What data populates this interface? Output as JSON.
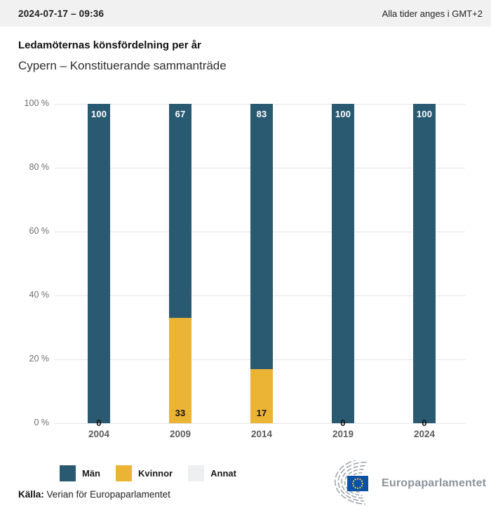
{
  "header": {
    "timestamp": "2024-07-17 – 09:36",
    "timezone_note": "Alla tider anges i GMT+2"
  },
  "title": "Ledamöternas könsfördelning per år",
  "subtitle": "Cypern – Konstituerande sammanträde",
  "chart_data": {
    "type": "bar",
    "stacked": true,
    "title": "Ledamöternas könsfördelning per år",
    "subtitle": "Cypern – Konstituerande sammanträde",
    "categories": [
      "2004",
      "2009",
      "2014",
      "2019",
      "2024"
    ],
    "series": [
      {
        "name": "Män",
        "color": "#2a5a72",
        "label_color": "#ffffff",
        "values": [
          100,
          67,
          83,
          100,
          100
        ]
      },
      {
        "name": "Kvinnor",
        "color": "#ecb434",
        "label_color": "#141414",
        "values": [
          0,
          33,
          17,
          0,
          0
        ]
      },
      {
        "name": "Annat",
        "color": "#eeeff0",
        "label_color": "#141414",
        "values": [
          0,
          0,
          0,
          0,
          0
        ]
      }
    ],
    "ylim": [
      0,
      100
    ],
    "ytick_step": 20,
    "ytick_labels": [
      "0 %",
      "20 %",
      "40 %",
      "60 %",
      "80 %",
      "100 %"
    ],
    "grid": true,
    "legend_position": "bottom"
  },
  "legend": {
    "items": [
      {
        "label": "Män",
        "color": "#2a5a72"
      },
      {
        "label": "Kvinnor",
        "color": "#ecb434"
      },
      {
        "label": "Annat",
        "color": "#eeeff0"
      }
    ]
  },
  "footer": {
    "source_label": "Källa:",
    "source_text": " Verian för Europaparlamentet",
    "logo_text": "Europaparlamentet"
  },
  "colors": {
    "men_bar": "#2a5a72",
    "women_bar": "#ecb434",
    "other_bar": "#eeeff0",
    "header_strip": "#f1f1f1",
    "gridline": "#e3e3e3",
    "eu_flag_blue": "#0b51a5",
    "eu_star_yellow": "#f8cf2a",
    "logo_gray": "#98a0a6"
  }
}
